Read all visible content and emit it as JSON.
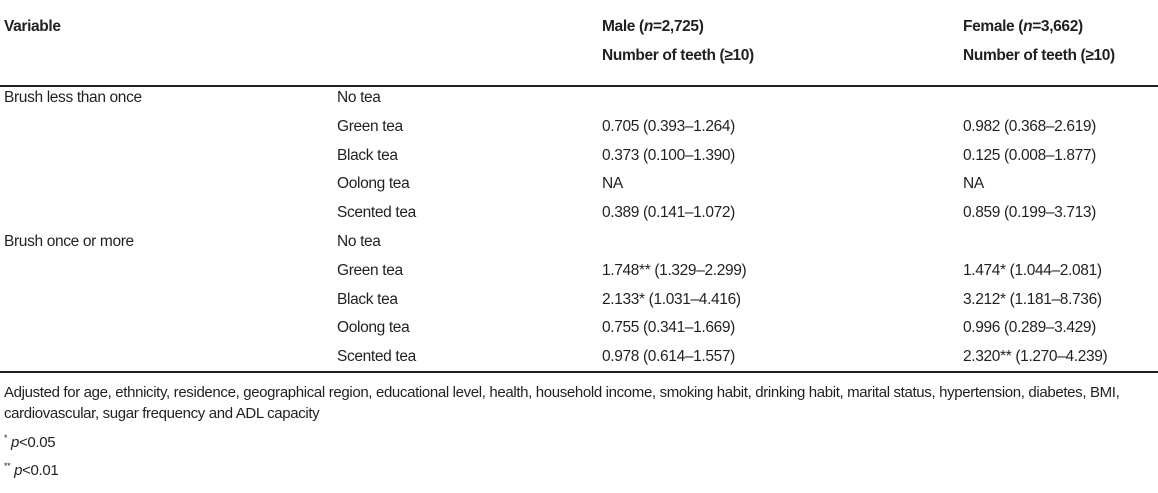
{
  "header": {
    "variable": "Variable",
    "male": {
      "group": "Male (",
      "n_label": "n",
      "n_value": "=2,725)",
      "measure": "Number of teeth (≥10)"
    },
    "female": {
      "group": "Female (",
      "n_label": "n",
      "n_value": "=3,662)",
      "measure": "Number of teeth (≥10)"
    }
  },
  "rows": [
    {
      "group": "Brush less than once",
      "tea": "No tea",
      "male": "",
      "female": ""
    },
    {
      "group": "",
      "tea": "Green tea",
      "male": "0.705 (0.393–1.264)",
      "female": "0.982 (0.368–2.619)"
    },
    {
      "group": "",
      "tea": "Black tea",
      "male": "0.373 (0.100–1.390)",
      "female": "0.125 (0.008–1.877)"
    },
    {
      "group": "",
      "tea": "Oolong tea",
      "male": "NA",
      "female": "NA"
    },
    {
      "group": "",
      "tea": "Scented tea",
      "male": "0.389 (0.141–1.072)",
      "female": "0.859 (0.199–3.713)"
    },
    {
      "group": "Brush once or more",
      "tea": "No tea",
      "male": "",
      "female": ""
    },
    {
      "group": "",
      "tea": "Green tea",
      "male": "1.748** (1.329–2.299)",
      "female": "1.474* (1.044–2.081)"
    },
    {
      "group": "",
      "tea": "Black tea",
      "male": "2.133* (1.031–4.416)",
      "female": "3.212* (1.181–8.736)"
    },
    {
      "group": "",
      "tea": "Oolong tea",
      "male": "0.755 (0.341–1.669)",
      "female": "0.996 (0.289–3.429)"
    },
    {
      "group": "",
      "tea": "Scented tea",
      "male": "0.978 (0.614–1.557)",
      "female": "2.320** (1.270–4.239)"
    }
  ],
  "footnotes": {
    "adjusted": "Adjusted for age, ethnicity, residence, geographical region, educational level, health, household income, smoking habit, drinking habit, marital status, hypertension, diabetes, BMI, cardiovascular, sugar frequency and ADL capacity",
    "sig1_mark": "*",
    "sig1_p": "p",
    "sig1_text": "<0.05",
    "sig2_mark": "**",
    "sig2_p": "p",
    "sig2_text": "<0.01"
  }
}
